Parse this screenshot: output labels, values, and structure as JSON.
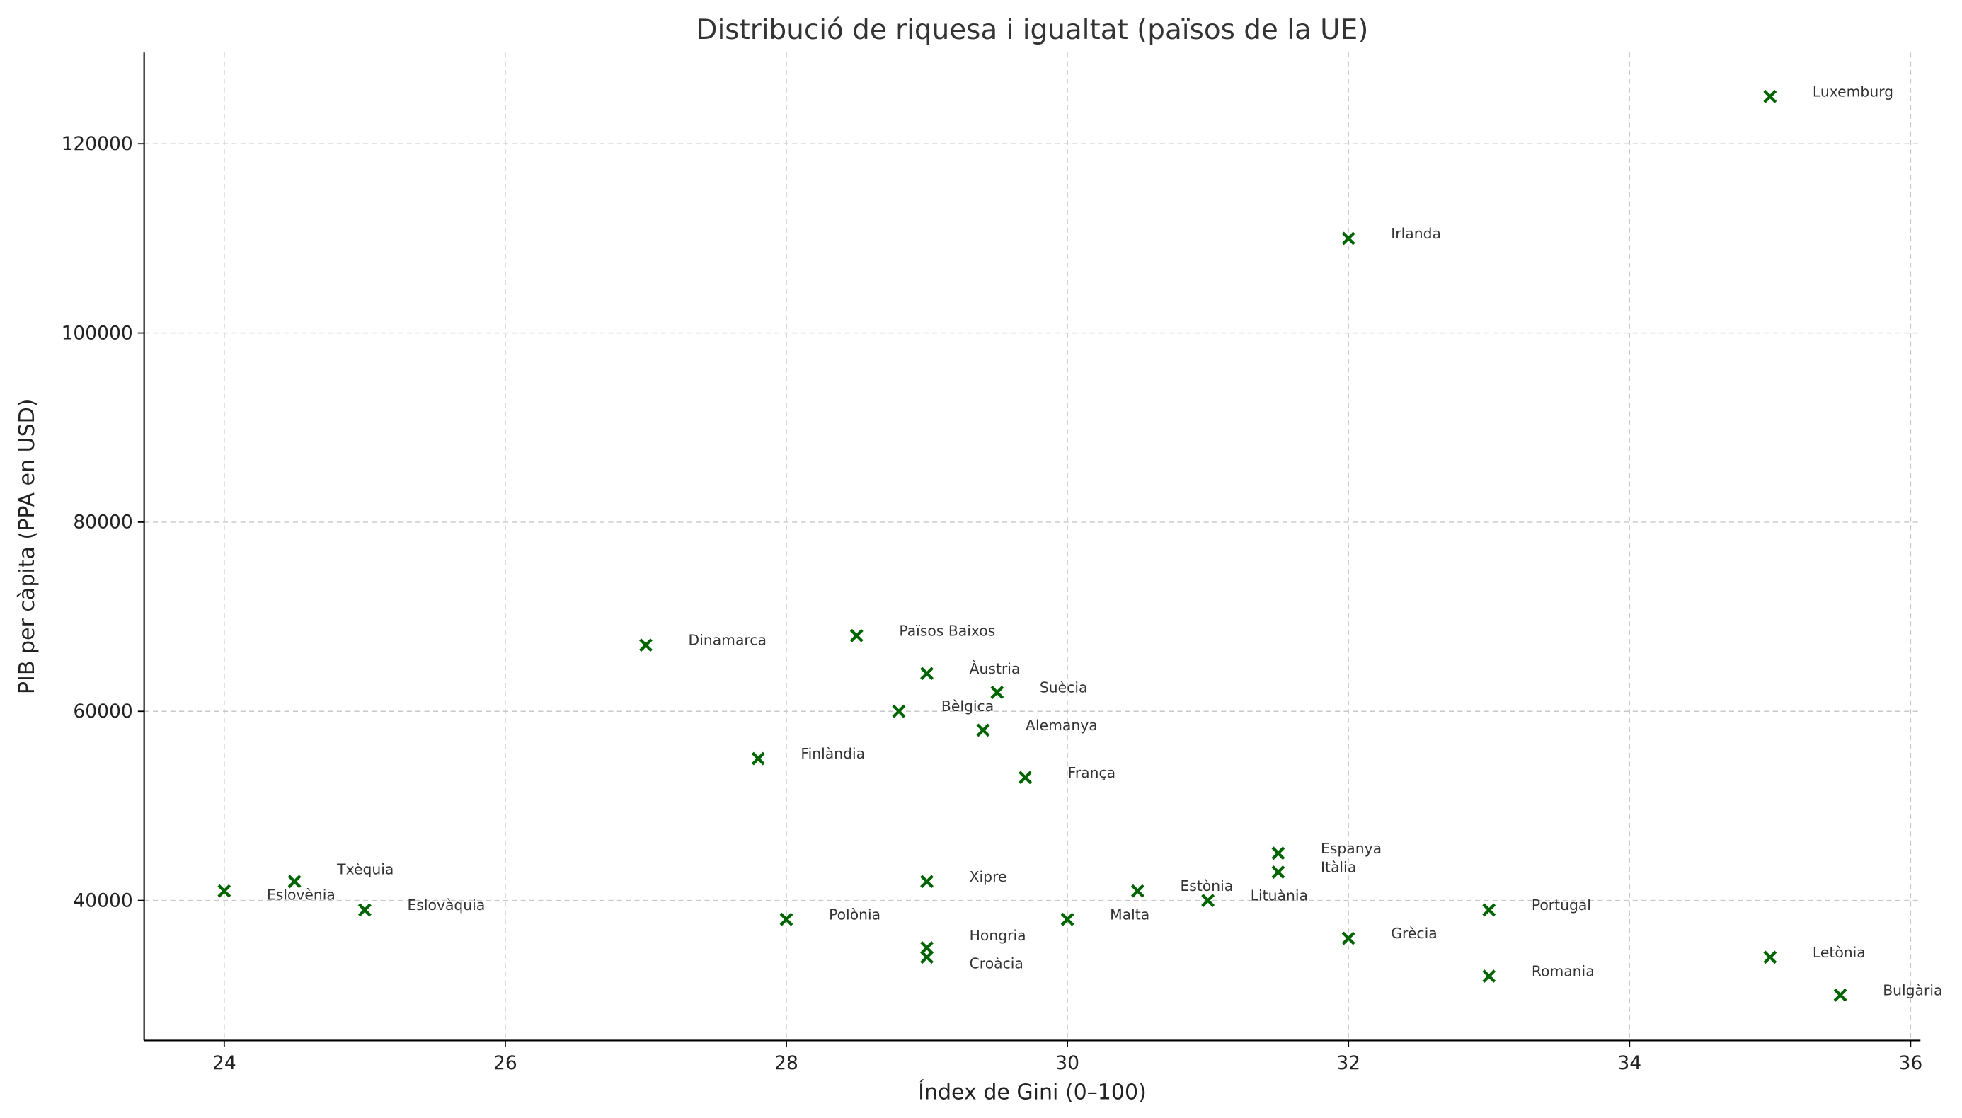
{
  "chart_data": {
    "type": "scatter",
    "title": "Distribució de riquesa i igualtat (països de la UE)",
    "xlabel": "Índex de Gini (0–100)",
    "ylabel": "PIB per càpita (PPA en USD)",
    "xlim": [
      23.43,
      36.07
    ],
    "ylim": [
      25200,
      129650
    ],
    "xticks": [
      24,
      26,
      28,
      30,
      32,
      34,
      36
    ],
    "yticks": [
      40000,
      60000,
      80000,
      100000,
      120000
    ],
    "grid": true,
    "marker_color": "#006400",
    "points": [
      {
        "label": "Luxemburg",
        "x": 35,
        "y": 125000
      },
      {
        "label": "Irlanda",
        "x": 32,
        "y": 110000
      },
      {
        "label": "Dinamarca",
        "x": 27,
        "y": 67000
      },
      {
        "label": "Països Baixos",
        "x": 28.5,
        "y": 68000
      },
      {
        "label": "Àustria",
        "x": 29,
        "y": 64000
      },
      {
        "label": "Suècia",
        "x": 29.5,
        "y": 62000
      },
      {
        "label": "Bèlgica",
        "x": 28.8,
        "y": 60000
      },
      {
        "label": "Alemanya",
        "x": 29.4,
        "y": 58000
      },
      {
        "label": "Finlàndia",
        "x": 27.8,
        "y": 55000
      },
      {
        "label": "França",
        "x": 29.7,
        "y": 53000
      },
      {
        "label": "Espanya",
        "x": 31.5,
        "y": 45000
      },
      {
        "label": "Itàlia",
        "x": 31.5,
        "y": 43000
      },
      {
        "label": "Txèquia",
        "x": 24.5,
        "y": 42000
      },
      {
        "label": "Xipre",
        "x": 29,
        "y": 42000
      },
      {
        "label": "Eslovènia",
        "x": 24,
        "y": 41000
      },
      {
        "label": "Estònia",
        "x": 30.5,
        "y": 41000
      },
      {
        "label": "Lituània",
        "x": 31,
        "y": 40000
      },
      {
        "label": "Eslovàquia",
        "x": 25,
        "y": 39000
      },
      {
        "label": "Portugal",
        "x": 33,
        "y": 39000
      },
      {
        "label": "Polònia",
        "x": 28,
        "y": 38000
      },
      {
        "label": "Malta",
        "x": 30,
        "y": 38000
      },
      {
        "label": "Grècia",
        "x": 32,
        "y": 36000
      },
      {
        "label": "Hongria",
        "x": 29,
        "y": 35000
      },
      {
        "label": "Croàcia",
        "x": 29,
        "y": 34000
      },
      {
        "label": "Letònia",
        "x": 35,
        "y": 34000
      },
      {
        "label": "Romania",
        "x": 33,
        "y": 32000
      },
      {
        "label": "Bulgària",
        "x": 35.5,
        "y": 30000
      }
    ]
  }
}
